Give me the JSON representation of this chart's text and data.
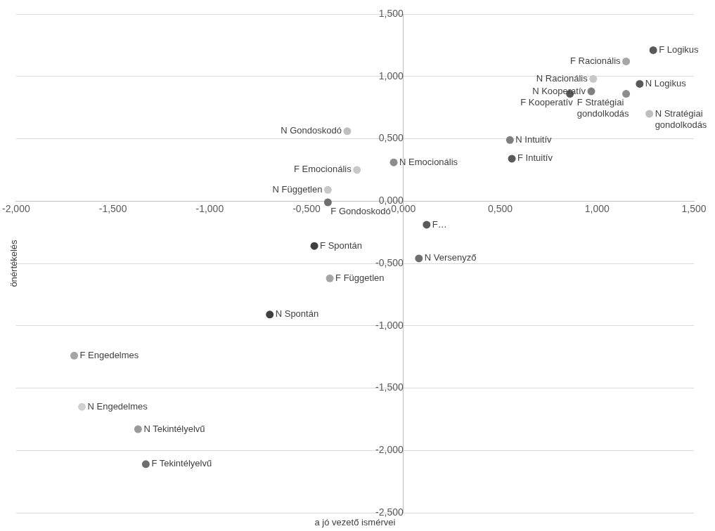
{
  "chart_data": {
    "type": "scatter",
    "xlabel": "a jó vezető ismérvei",
    "ylabel": "önértékelés",
    "xlim": [
      -2,
      1.5
    ],
    "xticks": [
      {
        "value": -2,
        "label": "-2,000"
      },
      {
        "value": -1.5,
        "label": "-1,500"
      },
      {
        "value": -1,
        "label": "-1,000"
      },
      {
        "value": -0.5,
        "label": "-0,500"
      },
      {
        "value": 0,
        "label": "0,000"
      },
      {
        "value": 0.5,
        "label": "0,500"
      },
      {
        "value": 1,
        "label": "1,000"
      },
      {
        "value": 1.5,
        "label": "1,500"
      }
    ],
    "ylim": [
      -2.5,
      1.5
    ],
    "yticks": [
      {
        "value": -2.5,
        "label": "-2,500"
      },
      {
        "value": -2,
        "label": "-2,000"
      },
      {
        "value": -1.5,
        "label": "-1,500"
      },
      {
        "value": -1,
        "label": "-1,000"
      },
      {
        "value": -0.5,
        "label": "-0,500"
      },
      {
        "value": 0,
        "label": "0,000"
      },
      {
        "value": 0.5,
        "label": "0,500"
      },
      {
        "value": 1,
        "label": "1,000"
      },
      {
        "value": 1.5,
        "label": "1,500"
      }
    ],
    "grid": "y",
    "legend": false,
    "marker": "circle",
    "series": [
      {
        "name": "F Logikus",
        "color": "#595959",
        "x": [
          1.29
        ],
        "values": [
          1.21
        ]
      },
      {
        "name": "F Racionális",
        "color": "#a5a5a5",
        "x": [
          1.15
        ],
        "values": [
          1.12
        ]
      },
      {
        "name": "N Racionális",
        "color": "#c8c8c8",
        "x": [
          0.98
        ],
        "values": [
          0.98
        ]
      },
      {
        "name": "N Logikus",
        "color": "#595959",
        "x": [
          1.22
        ],
        "values": [
          0.94
        ]
      },
      {
        "name": "F Stratégiai gondolkodás",
        "color": "#8c8c8c",
        "x": [
          1.15
        ],
        "values": [
          0.86
        ]
      },
      {
        "name": "N Kooperatív",
        "color": "#7f7f7f",
        "x": [
          0.97
        ],
        "values": [
          0.88
        ]
      },
      {
        "name": "F Kooperatív",
        "color": "#595959",
        "x": [
          0.86
        ],
        "values": [
          0.86
        ]
      },
      {
        "name": "N Stratégiai gondolkodás",
        "color": "#bfbfbf",
        "x": [
          1.27
        ],
        "values": [
          0.7
        ]
      },
      {
        "name": "N Gondoskodó",
        "color": "#bfbfbf",
        "x": [
          -0.29
        ],
        "values": [
          0.56
        ]
      },
      {
        "name": "N Intuitív",
        "color": "#7f7f7f",
        "x": [
          0.55
        ],
        "values": [
          0.49
        ]
      },
      {
        "name": "F Intuitív",
        "color": "#595959",
        "x": [
          0.56
        ],
        "values": [
          0.34
        ]
      },
      {
        "name": "N Emocionális",
        "color": "#8c8c8c",
        "x": [
          -0.05
        ],
        "values": [
          0.31
        ]
      },
      {
        "name": "F Emocionális",
        "color": "#c8c8c8",
        "x": [
          -0.24
        ],
        "values": [
          0.25
        ]
      },
      {
        "name": "N Független",
        "color": "#c8c8c8",
        "x": [
          -0.39
        ],
        "values": [
          0.09
        ]
      },
      {
        "name": "F Gondoskodó",
        "color": "#6e6e6e",
        "x": [
          -0.39
        ],
        "values": [
          -0.01
        ]
      },
      {
        "name": "F…",
        "color": "#595959",
        "x": [
          0.12
        ],
        "values": [
          -0.19
        ]
      },
      {
        "name": "F Spontán",
        "color": "#404040",
        "x": [
          -0.46
        ],
        "values": [
          -0.36
        ]
      },
      {
        "name": "N Versenyző",
        "color": "#6e6e6e",
        "x": [
          0.08
        ],
        "values": [
          -0.46
        ]
      },
      {
        "name": "F Független",
        "color": "#a5a5a5",
        "x": [
          -0.38
        ],
        "values": [
          -0.62
        ]
      },
      {
        "name": "N Spontán",
        "color": "#404040",
        "x": [
          -0.69
        ],
        "values": [
          -0.91
        ]
      },
      {
        "name": "F Engedelmes",
        "color": "#a5a5a5",
        "x": [
          -1.7
        ],
        "values": [
          -1.24
        ]
      },
      {
        "name": "N Engedelmes",
        "color": "#d0d0d0",
        "x": [
          -1.66
        ],
        "values": [
          -1.65
        ]
      },
      {
        "name": "N Tekintélyelvű",
        "color": "#9a9a9a",
        "x": [
          -1.37
        ],
        "values": [
          -1.83
        ]
      },
      {
        "name": "F Tekintélyelvű",
        "color": "#6e6e6e",
        "x": [
          -1.33
        ],
        "values": [
          -2.11
        ]
      }
    ]
  }
}
